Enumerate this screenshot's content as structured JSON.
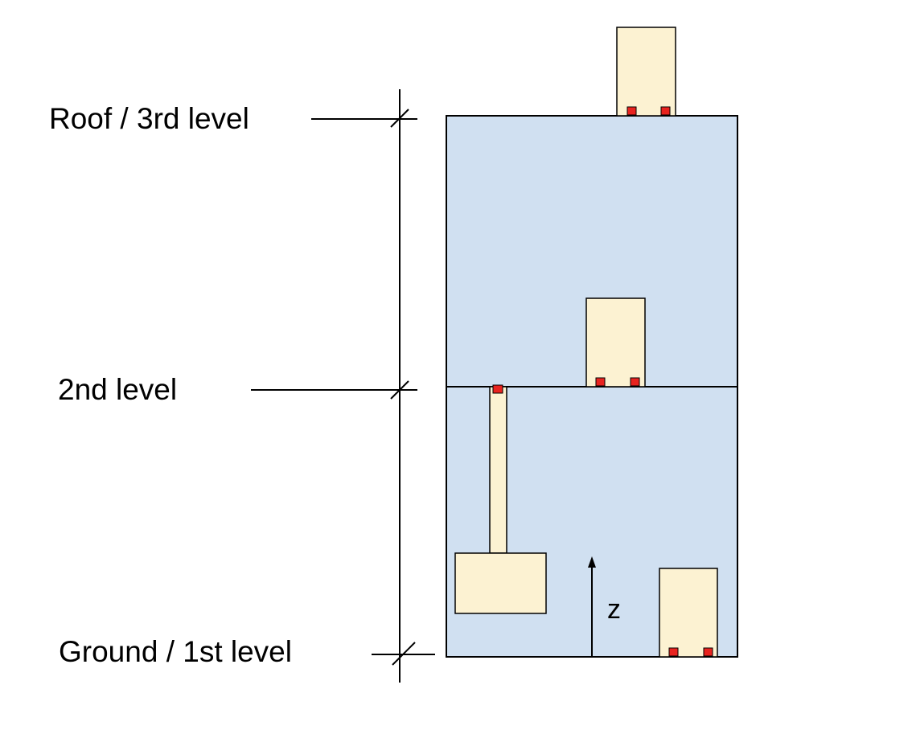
{
  "levels": [
    {
      "id": "roof",
      "label": "Roof / 3rd level"
    },
    {
      "id": "second",
      "label": "2nd level"
    },
    {
      "id": "ground",
      "label": "Ground / 1st level"
    }
  ],
  "axis": {
    "label": "z"
  },
  "colors": {
    "building_fill": "#d0e0f1",
    "object_fill": "#fcf2d2",
    "marker_fill": "#e8231f",
    "stroke": "#000000"
  }
}
